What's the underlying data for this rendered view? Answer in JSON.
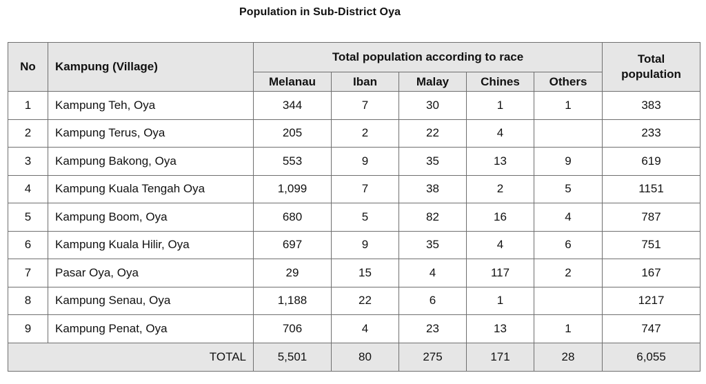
{
  "title": "Population in Sub-District Oya",
  "headers": {
    "no": "No",
    "village": "Kampung (Village)",
    "race_group": "Total population according to race",
    "total_line1": "Total",
    "total_line2": "population",
    "races": [
      "Melanau",
      "Iban",
      "Malay",
      "Chines",
      "Others"
    ]
  },
  "rows": [
    {
      "no": "1",
      "village": "Kampung Teh, Oya",
      "melanau": "344",
      "iban": "7",
      "malay": "30",
      "chinese": "1",
      "others": "1",
      "total": "383"
    },
    {
      "no": "2",
      "village": "Kampung Terus, Oya",
      "melanau": "205",
      "iban": "2",
      "malay": "22",
      "chinese": "4",
      "others": "",
      "total": "233"
    },
    {
      "no": "3",
      "village": "Kampung Bakong, Oya",
      "melanau": "553",
      "iban": "9",
      "malay": "35",
      "chinese": "13",
      "others": "9",
      "total": "619"
    },
    {
      "no": "4",
      "village": "Kampung Kuala Tengah Oya",
      "melanau": "1,099",
      "iban": "7",
      "malay": "38",
      "chinese": "2",
      "others": "5",
      "total": "1151"
    },
    {
      "no": "5",
      "village": "Kampung Boom, Oya",
      "melanau": "680",
      "iban": "5",
      "malay": "82",
      "chinese": "16",
      "others": "4",
      "total": "787"
    },
    {
      "no": "6",
      "village": "Kampung Kuala Hilir, Oya",
      "melanau": "697",
      "iban": "9",
      "malay": "35",
      "chinese": "4",
      "others": "6",
      "total": "751"
    },
    {
      "no": "7",
      "village": "Pasar Oya, Oya",
      "melanau": "29",
      "iban": "15",
      "malay": "4",
      "chinese": "117",
      "others": "2",
      "total": "167"
    },
    {
      "no": "8",
      "village": "Kampung Senau, Oya",
      "melanau": "1,188",
      "iban": "22",
      "malay": "6",
      "chinese": "1",
      "others": "",
      "total": "1217"
    },
    {
      "no": "9",
      "village": "Kampung Penat, Oya",
      "melanau": "706",
      "iban": "4",
      "malay": "23",
      "chinese": "13",
      "others": "1",
      "total": "747"
    }
  ],
  "total": {
    "label": "TOTAL",
    "melanau": "5,501",
    "iban": "80",
    "malay": "275",
    "chinese": "171",
    "others": "28",
    "total": "6,055"
  },
  "colors": {
    "header_bg": "#e6e6e6",
    "border": "#6e6e6e"
  }
}
